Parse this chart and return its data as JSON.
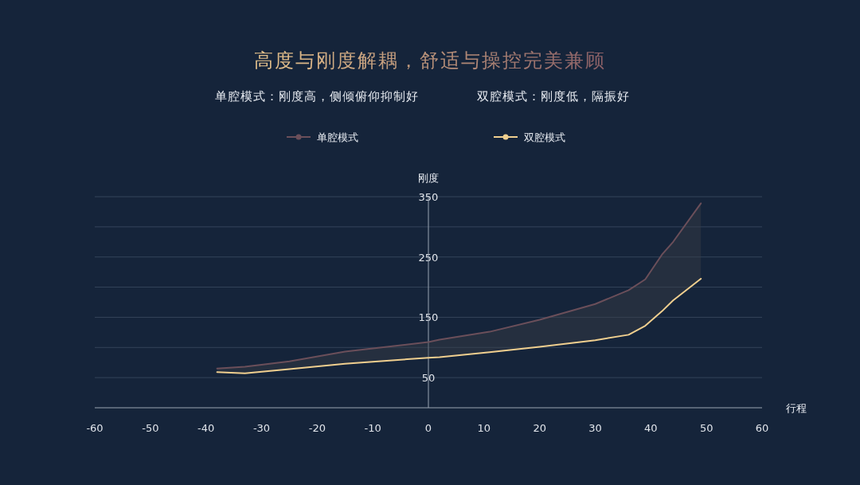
{
  "chart_data": {
    "type": "line",
    "title": "高度与刚度解耦，舒适与操控完美兼顾",
    "subtitle": "单腔模式：刚度高，侧倾俯仰抑制好",
    "annotations": [
      "双腔模式：刚度低，隔振好"
    ],
    "xlabel": "行程",
    "ylabel": "刚度",
    "x": [
      -38,
      -33,
      -25,
      -15,
      0,
      2,
      11,
      20,
      30,
      36,
      39,
      42,
      44,
      49
    ],
    "series": [
      {
        "name": "单腔模式",
        "color": "#6b4f5a",
        "values": [
          65,
          68,
          77,
          93,
          109,
          113,
          126,
          146,
          172,
          195,
          213,
          254,
          275,
          339
        ],
        "upper": [
          65,
          68,
          77,
          93,
          109,
          113,
          126,
          146,
          172,
          195,
          213,
          254,
          275,
          339
        ],
        "lower": [
          59,
          57,
          64,
          73,
          83,
          84,
          92,
          101,
          112,
          121,
          136,
          160,
          178,
          214
        ]
      },
      {
        "name": "双腔模式",
        "color": "#f0cf8f",
        "values": [
          59,
          57,
          64,
          73,
          83,
          84,
          92,
          101,
          112,
          121,
          136,
          160,
          178,
          214
        ]
      }
    ],
    "xlim": [
      -60,
      60
    ],
    "xticks": [
      -60,
      -50,
      -40,
      -30,
      -20,
      -10,
      0,
      10,
      20,
      30,
      40,
      50,
      60
    ],
    "ylim": [
      0,
      350
    ],
    "yticks": [
      50,
      {
        "value": 100,
        "label": null
      },
      150,
      {
        "value": 200,
        "label": null
      },
      250,
      {
        "value": 300,
        "label": null
      },
      350
    ],
    "grid": "y",
    "legend": "top"
  }
}
